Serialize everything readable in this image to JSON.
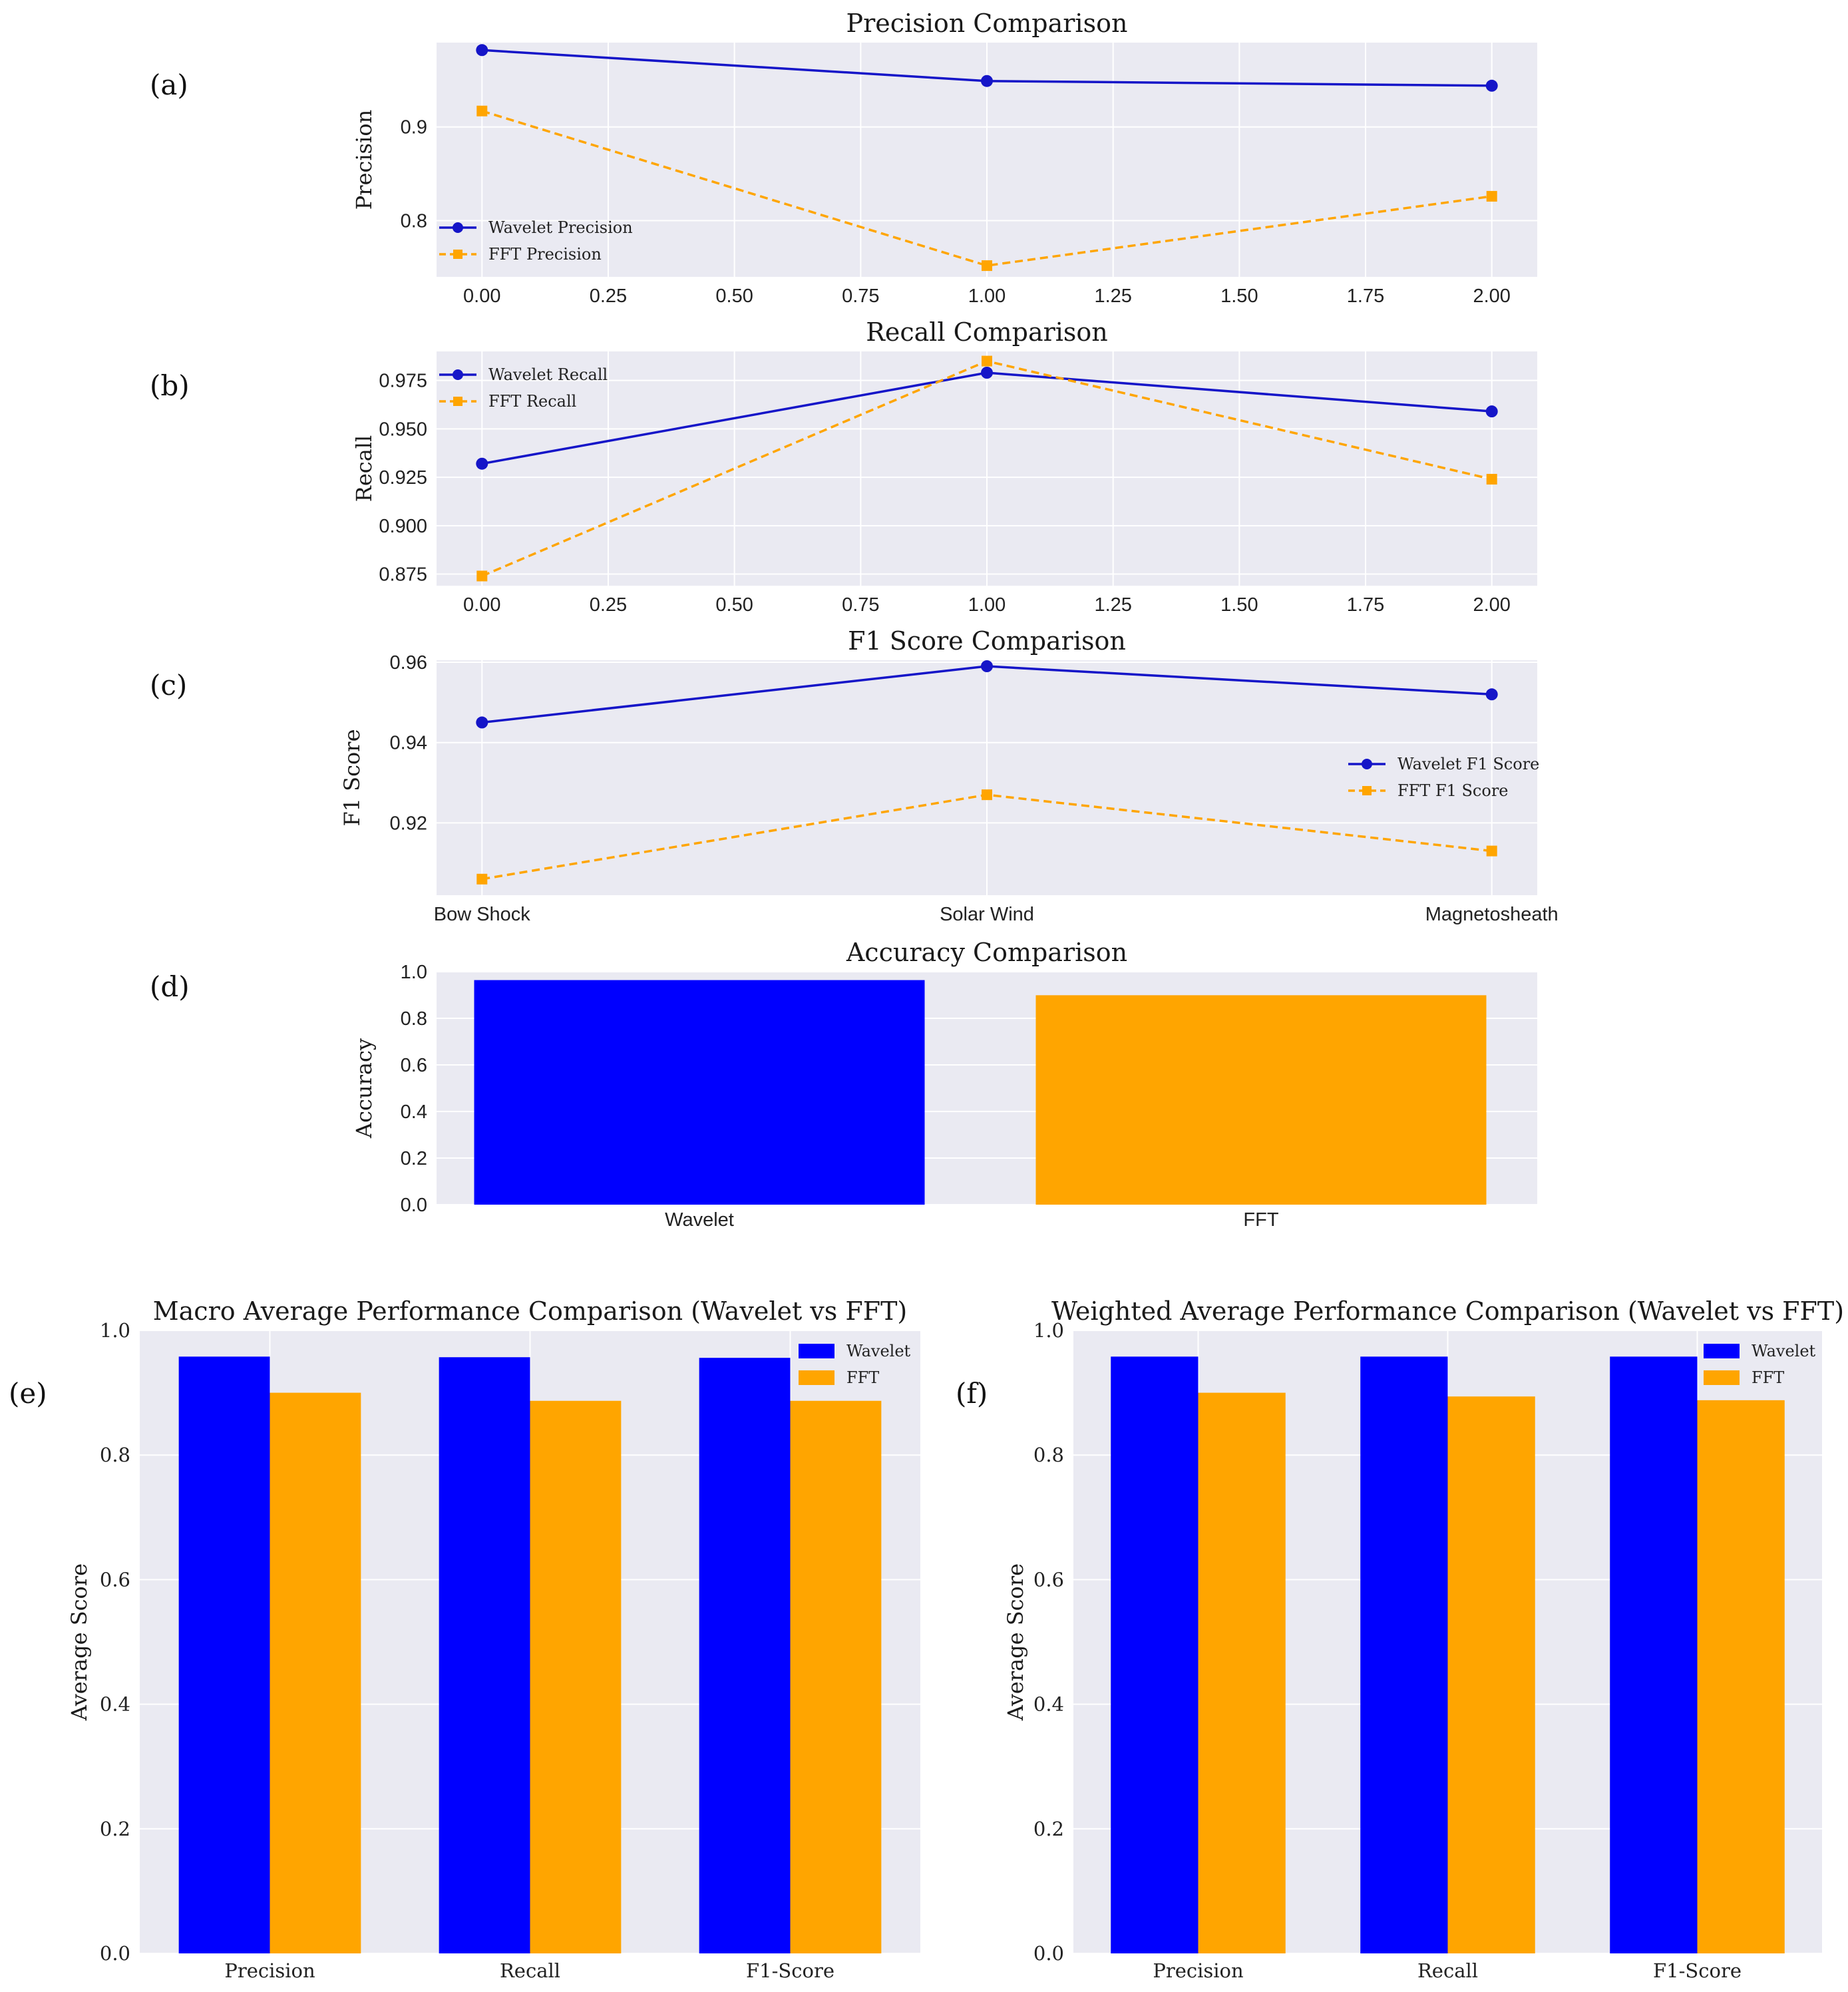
{
  "figure": {
    "panel_labels": [
      "(a)",
      "(b)",
      "(c)",
      "(d)",
      "(e)",
      "(f)"
    ]
  },
  "colors": {
    "wavelet": "#0000ff",
    "fft": "#ffa500",
    "wavelet_line": "#1515c8",
    "panel_bg": "#eaeaf2",
    "grid": "#ffffff"
  },
  "chart_data": [
    {
      "id": "a",
      "type": "line",
      "title": "Precision Comparison",
      "xlabel": "",
      "ylabel": "Precision",
      "x": [
        0,
        1,
        2
      ],
      "xlim": [
        -0.09,
        2.09
      ],
      "xticks": [
        0,
        0.25,
        0.5,
        0.75,
        1,
        1.25,
        1.5,
        1.75,
        2
      ],
      "xtick_labels": [
        "0.00",
        "0.25",
        "0.50",
        "0.75",
        "1.00",
        "1.25",
        "1.50",
        "1.75",
        "2.00"
      ],
      "ylim": [
        0.74,
        0.99
      ],
      "yticks": [
        0.8,
        0.9
      ],
      "ytick_labels": [
        "0.8",
        "0.9"
      ],
      "legend_position": "lower-left",
      "series": [
        {
          "name": "Wavelet Precision",
          "style": "solid-circle",
          "values": [
            0.982,
            0.949,
            0.944
          ]
        },
        {
          "name": "FFT Precision",
          "style": "dashed-square",
          "values": [
            0.917,
            0.752,
            0.826
          ]
        }
      ]
    },
    {
      "id": "b",
      "type": "line",
      "title": "Recall Comparison",
      "xlabel": "",
      "ylabel": "Recall",
      "x": [
        0,
        1,
        2
      ],
      "xlim": [
        -0.09,
        2.09
      ],
      "xticks": [
        0,
        0.25,
        0.5,
        0.75,
        1,
        1.25,
        1.5,
        1.75,
        2
      ],
      "xtick_labels": [
        "0.00",
        "0.25",
        "0.50",
        "0.75",
        "1.00",
        "1.25",
        "1.50",
        "1.75",
        "2.00"
      ],
      "ylim": [
        0.869,
        0.99
      ],
      "yticks": [
        0.875,
        0.9,
        0.925,
        0.95,
        0.975
      ],
      "ytick_labels": [
        "0.875",
        "0.900",
        "0.925",
        "0.950",
        "0.975"
      ],
      "legend_position": "upper-left",
      "series": [
        {
          "name": "Wavelet Recall",
          "style": "solid-circle",
          "values": [
            0.932,
            0.979,
            0.959
          ]
        },
        {
          "name": "FFT Recall",
          "style": "dashed-square",
          "values": [
            0.874,
            0.985,
            0.924
          ]
        }
      ]
    },
    {
      "id": "c",
      "type": "line",
      "title": "F1 Score Comparison",
      "xlabel": "",
      "ylabel": "F1 Score",
      "categories": [
        "Bow Shock",
        "Solar Wind",
        "Magnetosheath"
      ],
      "x": [
        0,
        1,
        2
      ],
      "xlim": [
        -0.09,
        2.09
      ],
      "ylim": [
        0.902,
        0.9605
      ],
      "yticks": [
        0.92,
        0.94,
        0.96
      ],
      "ytick_labels": [
        "0.92",
        "0.94",
        "0.96"
      ],
      "legend_position": "center-right",
      "series": [
        {
          "name": "Wavelet F1 Score",
          "style": "solid-circle",
          "values": [
            0.945,
            0.959,
            0.952
          ]
        },
        {
          "name": "FFT F1 Score",
          "style": "dashed-square",
          "values": [
            0.906,
            0.927,
            0.913
          ]
        }
      ]
    },
    {
      "id": "d",
      "type": "bar",
      "title": "Accuracy Comparison",
      "xlabel": "",
      "ylabel": "Accuracy",
      "categories": [
        "Wavelet",
        "FFT"
      ],
      "values": [
        0.964,
        0.899
      ],
      "ylim": [
        0,
        1.0
      ],
      "yticks": [
        0,
        0.2,
        0.4,
        0.6,
        0.8,
        1.0
      ],
      "ytick_labels": [
        "0.0",
        "0.2",
        "0.4",
        "0.6",
        "0.8",
        "1.0"
      ]
    },
    {
      "id": "e",
      "type": "bar",
      "title": "Macro Average Performance Comparison (Wavelet vs FFT)",
      "xlabel": "",
      "ylabel": "Average Score",
      "categories": [
        "Precision",
        "Recall",
        "F1-Score"
      ],
      "ylim": [
        0,
        1.0
      ],
      "yticks": [
        0,
        0.2,
        0.4,
        0.6,
        0.8,
        1.0
      ],
      "ytick_labels": [
        "0.0",
        "0.2",
        "0.4",
        "0.6",
        "0.8",
        "1.0"
      ],
      "legend_position": "top-right",
      "series": [
        {
          "name": "Wavelet",
          "values": [
            0.958,
            0.957,
            0.956
          ]
        },
        {
          "name": "FFT",
          "values": [
            0.9,
            0.887,
            0.887
          ]
        }
      ]
    },
    {
      "id": "f",
      "type": "bar",
      "title": "Weighted Average Performance Comparison (Wavelet vs FFT)",
      "xlabel": "",
      "ylabel": "Average Score",
      "categories": [
        "Precision",
        "Recall",
        "F1-Score"
      ],
      "ylim": [
        0,
        1.0
      ],
      "yticks": [
        0,
        0.2,
        0.4,
        0.6,
        0.8,
        1.0
      ],
      "ytick_labels": [
        "0.0",
        "0.2",
        "0.4",
        "0.6",
        "0.8",
        "1.0"
      ],
      "legend_position": "top-right",
      "series": [
        {
          "name": "Wavelet",
          "values": [
            0.958,
            0.958,
            0.958
          ]
        },
        {
          "name": "FFT",
          "values": [
            0.9,
            0.894,
            0.888
          ]
        }
      ]
    }
  ]
}
